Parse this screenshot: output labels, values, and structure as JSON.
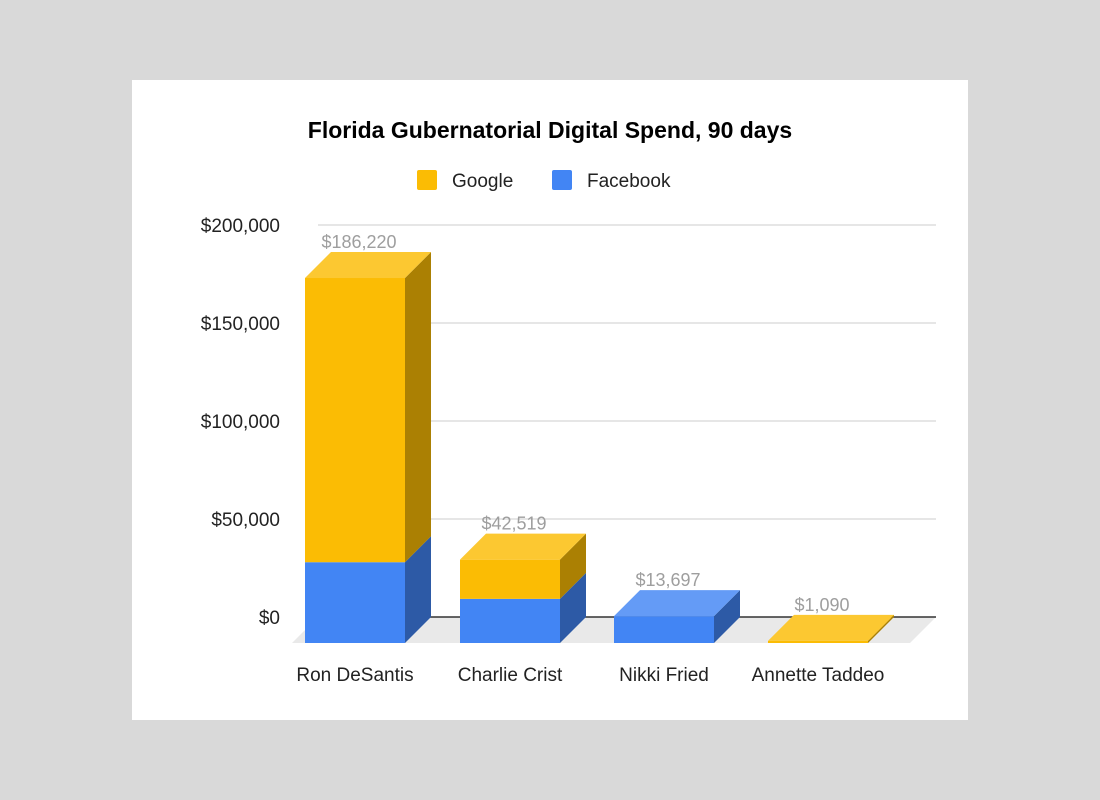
{
  "chart_data": {
    "type": "bar",
    "stacked": true,
    "three_d": true,
    "title": "Florida Gubernatorial Digital Spend, 90 days",
    "xlabel": "",
    "ylabel": "",
    "categories": [
      "Ron DeSantis",
      "Charlie Crist",
      "Nikki Fried",
      "Annette Taddeo"
    ],
    "series": [
      {
        "name": "Facebook",
        "color": "#4285f4",
        "values": [
          41220,
          22519,
          13697,
          0
        ]
      },
      {
        "name": "Google",
        "color": "#fbbc04",
        "values": [
          145000,
          20000,
          0,
          1090
        ]
      }
    ],
    "totals": [
      186220,
      42519,
      13697,
      1090
    ],
    "total_labels": [
      "$186,220",
      "$42,519",
      "$13,697",
      "$1,090"
    ],
    "ylim": [
      0,
      200000
    ],
    "y_ticks": [
      0,
      50000,
      100000,
      150000,
      200000
    ],
    "y_tick_labels": [
      "$0",
      "$50,000",
      "$100,000",
      "$150,000",
      "$200,000"
    ],
    "legend": {
      "position": "top",
      "order": [
        "Google",
        "Facebook"
      ]
    },
    "grid": true
  }
}
